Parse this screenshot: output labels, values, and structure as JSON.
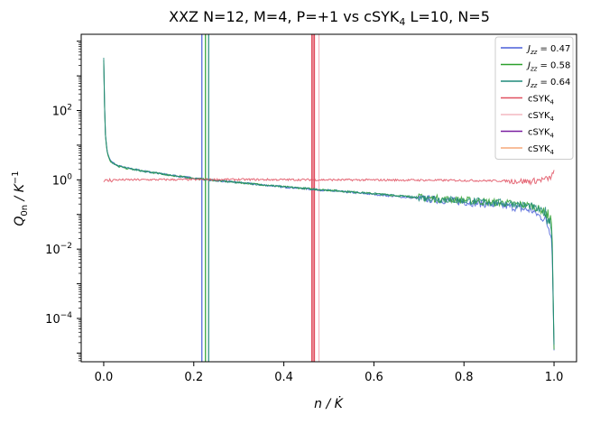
{
  "chart_data": {
    "type": "line",
    "title_main": "XXZ N=12, M=4, P=+1 vs cSYK",
    "title_sub": "4",
    "title_tail": " L=10, N=5",
    "xlabel": "n / K̇",
    "ylabel_main": "Q",
    "ylabel_sub": "0n",
    "ylabel_rest": " / K",
    "ylabel_sup": "−1",
    "xlim": [
      -0.05,
      1.05
    ],
    "ylim_log10": [
      -5.25,
      4.2
    ],
    "yscale": "log",
    "grid": false,
    "legend_position": "top-right",
    "x_ticks": [
      0.0,
      0.2,
      0.4,
      0.6,
      0.8,
      1.0
    ],
    "x_tick_labels": [
      "0.0",
      "0.2",
      "0.4",
      "0.6",
      "0.8",
      "1.0"
    ],
    "y_ticks_log10": [
      2,
      0,
      -2,
      -4
    ],
    "y_tick_bases": [
      "10",
      "10",
      "10",
      "10"
    ],
    "y_tick_exps": [
      "2",
      "0",
      "−2",
      "−4"
    ],
    "series": [
      {
        "name_main": "J",
        "name_sub": "zz",
        "name_value": " = 0.47",
        "color": "#4a5fd8",
        "kind": "xxz",
        "x": [
          0.0,
          0.002,
          0.004,
          0.008,
          0.015,
          0.03,
          0.05,
          0.1,
          0.15,
          0.2,
          0.25,
          0.3,
          0.35,
          0.4,
          0.45,
          0.5,
          0.55,
          0.6,
          0.65,
          0.7,
          0.75,
          0.8,
          0.85,
          0.9,
          0.95,
          0.98,
          0.995,
          1.0
        ],
        "y": [
          3000,
          120,
          18,
          6,
          3.5,
          2.6,
          2.2,
          1.7,
          1.35,
          1.12,
          0.95,
          0.83,
          0.72,
          0.62,
          0.55,
          0.48,
          0.43,
          0.38,
          0.33,
          0.29,
          0.26,
          0.23,
          0.2,
          0.17,
          0.13,
          0.07,
          0.03,
          1.8e-05
        ],
        "vline": 0.218
      },
      {
        "name_main": "J",
        "name_sub": "zz",
        "name_value": " = 0.58",
        "color": "#2ca02c",
        "kind": "xxz",
        "x": [
          0.0,
          0.002,
          0.004,
          0.008,
          0.015,
          0.03,
          0.05,
          0.1,
          0.15,
          0.2,
          0.25,
          0.3,
          0.35,
          0.4,
          0.45,
          0.5,
          0.55,
          0.6,
          0.65,
          0.7,
          0.75,
          0.8,
          0.85,
          0.9,
          0.95,
          0.98,
          0.995,
          1.0
        ],
        "y": [
          2800,
          110,
          17,
          5.8,
          3.4,
          2.5,
          2.15,
          1.68,
          1.34,
          1.11,
          0.95,
          0.83,
          0.73,
          0.63,
          0.56,
          0.5,
          0.45,
          0.4,
          0.35,
          0.31,
          0.28,
          0.26,
          0.23,
          0.21,
          0.18,
          0.12,
          0.06,
          2e-05
        ],
        "vline": 0.226
      },
      {
        "name_main": "J",
        "name_sub": "zz",
        "name_value": " = 0.64",
        "color": "#1f8a7a",
        "kind": "xxz",
        "x": [
          0.0,
          0.002,
          0.004,
          0.008,
          0.015,
          0.03,
          0.05,
          0.1,
          0.15,
          0.2,
          0.25,
          0.3,
          0.35,
          0.4,
          0.45,
          0.5,
          0.55,
          0.6,
          0.65,
          0.7,
          0.75,
          0.8,
          0.85,
          0.9,
          0.95,
          0.98,
          0.995,
          1.0
        ],
        "y": [
          3200,
          115,
          17.5,
          6,
          3.45,
          2.55,
          2.18,
          1.69,
          1.34,
          1.11,
          0.95,
          0.83,
          0.72,
          0.63,
          0.56,
          0.5,
          0.45,
          0.4,
          0.35,
          0.31,
          0.28,
          0.25,
          0.23,
          0.21,
          0.17,
          0.11,
          0.05,
          2.2e-05
        ],
        "vline": 0.233
      },
      {
        "name_main": "cSYK",
        "name_sub": "4",
        "name_value": "",
        "color": "#e05060",
        "kind": "csyk",
        "x": [
          0.0,
          0.005,
          0.01,
          0.02,
          0.05,
          0.1,
          0.2,
          0.3,
          0.4,
          0.5,
          0.6,
          0.7,
          0.8,
          0.9,
          0.95,
          0.99,
          1.0
        ],
        "y": [
          1.0,
          0.9,
          0.95,
          1.0,
          1.0,
          1.01,
          1.02,
          1.02,
          1.01,
          1.0,
          0.99,
          0.98,
          0.96,
          0.93,
          0.9,
          1.1,
          1.6
        ],
        "vline": 0.465
      },
      {
        "name_main": "cSYK",
        "name_sub": "4",
        "name_value": "",
        "color": "#f4b8c0",
        "kind": "csyk-pale",
        "vline": 0.478
      },
      {
        "name_main": "cSYK",
        "name_sub": "4",
        "name_value": "",
        "color": "#7a1fa0",
        "kind": "csyk-flat"
      },
      {
        "name_main": "cSYK",
        "name_sub": "4",
        "name_value": "",
        "color": "#f5a87a",
        "kind": "csyk-flat"
      }
    ],
    "extra_vlines": [
      {
        "x": 0.462,
        "color": "#e05060"
      },
      {
        "x": 0.468,
        "color": "#e05060"
      }
    ]
  }
}
